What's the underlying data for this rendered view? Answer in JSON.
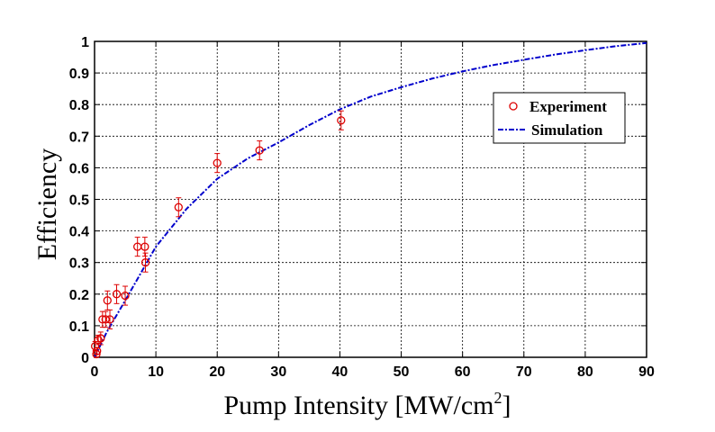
{
  "chart_data": {
    "type": "scatter",
    "title": "",
    "xlabel": "Pump Intensity [MW/cm",
    "xlabel_sup": "2",
    "xlabel_end": "]",
    "ylabel": "Efficiency",
    "xlim": [
      0,
      90
    ],
    "ylim": [
      0,
      1
    ],
    "xticks": [
      0,
      10,
      20,
      30,
      40,
      50,
      60,
      70,
      80,
      90
    ],
    "yticks": [
      0,
      0.1,
      0.2,
      0.3,
      0.4,
      0.5,
      0.6,
      0.7,
      0.8,
      0.9,
      1
    ],
    "grid": true,
    "legend_position": "upper-right",
    "colors": {
      "experiment": "#dd0000",
      "simulation": "#0000cc"
    },
    "series": [
      {
        "name": "Experiment",
        "kind": "points-with-errorbars",
        "x": [
          0.1,
          0.3,
          0.4,
          0.6,
          1.0,
          1.3,
          1.8,
          2.1,
          2.5,
          3.6,
          5.0,
          7.0,
          8.2,
          8.3,
          13.7,
          20.0,
          26.9,
          40.2
        ],
        "y": [
          0.035,
          0.01,
          0.02,
          0.055,
          0.06,
          0.12,
          0.12,
          0.18,
          0.12,
          0.2,
          0.195,
          0.35,
          0.35,
          0.3,
          0.475,
          0.615,
          0.655,
          0.75
        ],
        "err": [
          0.015,
          0.01,
          0.01,
          0.015,
          0.02,
          0.025,
          0.025,
          0.03,
          0.03,
          0.03,
          0.03,
          0.03,
          0.03,
          0.03,
          0.03,
          0.03,
          0.03,
          0.03
        ]
      },
      {
        "name": "Simulation",
        "kind": "line",
        "x": [
          0,
          2,
          5,
          10,
          15,
          20,
          25,
          30,
          35,
          40,
          45,
          50,
          55,
          60,
          65,
          70,
          75,
          80,
          85,
          90
        ],
        "y": [
          0,
          0.08,
          0.18,
          0.35,
          0.47,
          0.565,
          0.63,
          0.68,
          0.735,
          0.785,
          0.825,
          0.855,
          0.882,
          0.905,
          0.925,
          0.942,
          0.958,
          0.972,
          0.985,
          0.995
        ]
      }
    ]
  }
}
